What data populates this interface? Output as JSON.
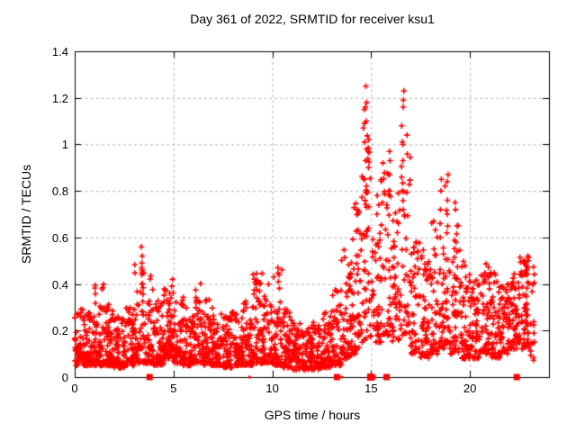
{
  "chart_data": {
    "type": "scatter",
    "title": "Day 361 of 2022, SRMTID for receiver ksu1",
    "xlabel": "GPS time / hours",
    "ylabel": "SRMTID / TECUs",
    "xlim": [
      0,
      24
    ],
    "ylim": [
      0,
      1.4
    ],
    "xticks": [
      {
        "v": 0,
        "label": "0"
      },
      {
        "v": 5,
        "label": "5"
      },
      {
        "v": 10,
        "label": "10"
      },
      {
        "v": 15,
        "label": "15"
      },
      {
        "v": 20,
        "label": "20"
      }
    ],
    "yticks": [
      {
        "v": 0.0,
        "label": "0"
      },
      {
        "v": 0.2,
        "label": "0.2"
      },
      {
        "v": 0.4,
        "label": "0.4"
      },
      {
        "v": 0.6,
        "label": "0.6"
      },
      {
        "v": 0.8,
        "label": "0.8"
      },
      {
        "v": 1.0,
        "label": "1"
      },
      {
        "v": 1.2,
        "label": "1.2"
      },
      {
        "v": 1.4,
        "label": "1.4"
      }
    ],
    "grid": true,
    "legend": "none",
    "marker": "plus",
    "marker_color": "#ff0000",
    "grid_color": "#b4b4b4",
    "axis_color": "#000000",
    "background": "#ffffff",
    "seed": 361,
    "scatter_bins": [
      [
        0.0,
        0.5,
        60,
        0.05,
        0.3,
        1.8
      ],
      [
        0.5,
        1.0,
        60,
        0.05,
        0.28,
        1.8
      ],
      [
        1.0,
        1.5,
        60,
        0.05,
        0.4,
        2.0
      ],
      [
        1.5,
        2.0,
        58,
        0.05,
        0.33,
        2.0
      ],
      [
        2.0,
        2.5,
        55,
        0.04,
        0.26,
        1.8
      ],
      [
        2.5,
        3.0,
        55,
        0.05,
        0.3,
        1.8
      ],
      [
        3.0,
        3.5,
        58,
        0.06,
        0.5,
        2.2
      ],
      [
        3.5,
        4.0,
        58,
        0.06,
        0.45,
        2.2
      ],
      [
        4.0,
        4.5,
        58,
        0.05,
        0.33,
        1.8
      ],
      [
        4.5,
        5.0,
        62,
        0.08,
        0.38,
        1.8
      ],
      [
        5.0,
        5.5,
        60,
        0.06,
        0.35,
        1.8
      ],
      [
        5.5,
        6.0,
        55,
        0.05,
        0.3,
        1.8
      ],
      [
        6.0,
        6.5,
        58,
        0.06,
        0.42,
        2.0
      ],
      [
        6.5,
        7.0,
        55,
        0.05,
        0.35,
        2.0
      ],
      [
        7.0,
        7.5,
        55,
        0.05,
        0.3,
        1.8
      ],
      [
        7.5,
        8.0,
        55,
        0.04,
        0.28,
        1.8
      ],
      [
        8.0,
        8.5,
        55,
        0.05,
        0.3,
        1.8
      ],
      [
        8.5,
        9.0,
        55,
        0.05,
        0.33,
        1.8
      ],
      [
        9.0,
        9.5,
        58,
        0.06,
        0.45,
        2.0
      ],
      [
        9.5,
        10.0,
        58,
        0.06,
        0.4,
        2.0
      ],
      [
        10.0,
        10.5,
        58,
        0.05,
        0.47,
        2.2
      ],
      [
        10.5,
        11.0,
        55,
        0.04,
        0.3,
        1.8
      ],
      [
        11.0,
        11.5,
        55,
        0.03,
        0.25,
        1.8
      ],
      [
        11.5,
        12.0,
        55,
        0.03,
        0.22,
        1.7
      ],
      [
        12.0,
        12.5,
        55,
        0.03,
        0.25,
        1.7
      ],
      [
        12.5,
        13.0,
        55,
        0.04,
        0.3,
        1.8
      ],
      [
        13.0,
        13.5,
        55,
        0.05,
        0.38,
        2.0
      ],
      [
        13.5,
        14.0,
        58,
        0.08,
        0.55,
        2.2
      ],
      [
        14.0,
        14.5,
        55,
        0.1,
        0.75,
        2.0
      ],
      [
        14.5,
        15.0,
        50,
        0.15,
        1.1,
        1.8
      ],
      [
        15.0,
        15.5,
        45,
        0.15,
        0.8,
        1.8
      ],
      [
        15.5,
        16.0,
        45,
        0.18,
        0.95,
        1.8
      ],
      [
        16.0,
        16.5,
        45,
        0.15,
        0.8,
        1.8
      ],
      [
        16.5,
        17.0,
        42,
        0.18,
        1.05,
        1.8
      ],
      [
        17.0,
        17.5,
        50,
        0.1,
        0.6,
        1.8
      ],
      [
        17.5,
        18.0,
        55,
        0.08,
        0.55,
        1.9
      ],
      [
        18.0,
        18.5,
        50,
        0.1,
        0.7,
        2.0
      ],
      [
        18.5,
        19.0,
        50,
        0.12,
        0.85,
        2.0
      ],
      [
        19.0,
        19.5,
        50,
        0.1,
        0.72,
        2.0
      ],
      [
        19.5,
        20.0,
        55,
        0.08,
        0.5,
        1.8
      ],
      [
        20.0,
        20.5,
        55,
        0.08,
        0.45,
        1.8
      ],
      [
        20.5,
        21.0,
        55,
        0.1,
        0.5,
        1.8
      ],
      [
        21.0,
        21.5,
        55,
        0.08,
        0.45,
        1.8
      ],
      [
        21.5,
        22.0,
        55,
        0.1,
        0.4,
        1.7
      ],
      [
        22.0,
        22.5,
        55,
        0.12,
        0.45,
        1.6
      ],
      [
        22.5,
        23.0,
        60,
        0.12,
        0.53,
        1.4
      ],
      [
        23.0,
        23.3,
        18,
        0.07,
        0.5,
        1.8
      ]
    ],
    "peak_columns": [
      {
        "x": 3.42,
        "ys": [
          0.56,
          0.52,
          0.49,
          0.47,
          0.44,
          0.4
        ]
      },
      {
        "x": 4.95,
        "ys": [
          0.42,
          0.39
        ]
      },
      {
        "x": 10.3,
        "ys": [
          0.47,
          0.44,
          0.41
        ]
      },
      {
        "x": 14.72,
        "ys": [
          1.25,
          1.18,
          1.16,
          1.15,
          1.09,
          1.01,
          0.98,
          0.93,
          0.85,
          0.73
        ]
      },
      {
        "x": 14.88,
        "ys": [
          1.02,
          0.97,
          0.9,
          0.64
        ]
      },
      {
        "x": 15.35,
        "ys": [
          0.78,
          0.74,
          0.7
        ]
      },
      {
        "x": 15.9,
        "ys": [
          0.97,
          0.93,
          0.87,
          0.8
        ]
      },
      {
        "x": 16.6,
        "ys": [
          1.23,
          1.19,
          1.16,
          1.08,
          1.0,
          0.93,
          0.8,
          0.72
        ]
      },
      {
        "x": 18.55,
        "ys": [
          0.85,
          0.8,
          0.72,
          0.66,
          0.6
        ]
      },
      {
        "x": 18.85,
        "ys": [
          0.87,
          0.84,
          0.76,
          0.7,
          0.62
        ]
      },
      {
        "x": 19.3,
        "ys": [
          0.75,
          0.72,
          0.65,
          0.58
        ]
      },
      {
        "x": 22.9,
        "ys": [
          0.52,
          0.5,
          0.48,
          0.46,
          0.44
        ]
      }
    ],
    "zero_line_squares": [
      {
        "x": 3.79,
        "w": 7
      },
      {
        "x": 8.85,
        "w": 3
      },
      {
        "x": 13.27,
        "w": 7
      },
      {
        "x": 13.52,
        "w": 3
      },
      {
        "x": 14.98,
        "w": 8
      },
      {
        "x": 15.12,
        "w": 5
      },
      {
        "x": 15.78,
        "w": 7
      },
      {
        "x": 22.37,
        "w": 7
      }
    ],
    "notable_peaks": [
      {
        "x": 14.7,
        "y": 1.25
      },
      {
        "x": 16.6,
        "y": 1.23
      },
      {
        "x": 15.9,
        "y": 0.97
      },
      {
        "x": 18.9,
        "y": 0.87
      },
      {
        "x": 19.3,
        "y": 0.75
      },
      {
        "x": 3.4,
        "y": 0.56
      },
      {
        "x": 10.3,
        "y": 0.47
      },
      {
        "x": 22.9,
        "y": 0.53
      }
    ]
  }
}
